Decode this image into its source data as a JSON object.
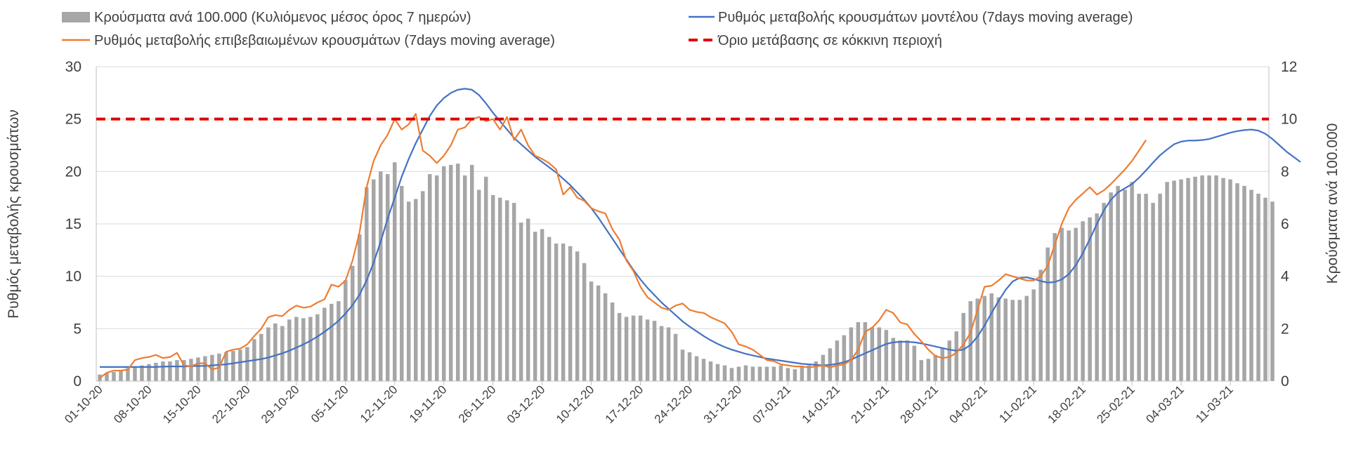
{
  "chart_data": {
    "type": "bar",
    "legend": {
      "placement": "top",
      "bars": "Κρούσματα ανά 100.000 (Κυλιόμενος μέσος όρος 7 ημερών)",
      "model": "Ρυθμός μεταβολής κρουσμάτων μοντέλου (7days moving average)",
      "confirmed": "Ρυθμός μεταβολής επιβεβαιωμένων κρουσμάτων (7days moving average)",
      "threshold": "Όριο μετάβασης σε κόκκινη περιοχή"
    },
    "ylabel_left": "Ρυθμός μεταβολής κρουσμάτων",
    "ylabel_right": "Κρούσματα ανά 100.000",
    "ylim_left": [
      0,
      30
    ],
    "ylim_right": [
      0,
      12
    ],
    "yticks_left": [
      "0",
      "5",
      "10",
      "15",
      "20",
      "25",
      "30"
    ],
    "yticks_right": [
      "0",
      "2",
      "4",
      "6",
      "8",
      "10",
      "12"
    ],
    "x_tick_labels": [
      "01-10-20",
      "08-10-20",
      "15-10-20",
      "22-10-20",
      "29-10-20",
      "05-11-20",
      "12-11-20",
      "19-11-20",
      "26-11-20",
      "03-12-20",
      "10-12-20",
      "17-12-20",
      "24-12-20",
      "31-12-20",
      "07-01-21",
      "14-01-21",
      "21-01-21",
      "28-01-21",
      "04-02-21",
      "11-02-21",
      "18-02-21",
      "25-02-21",
      "04-03-21",
      "11-03-21"
    ],
    "grid": "horizontal",
    "colors": {
      "bars": "#a6a6a6",
      "model": "#4472c4",
      "confirmed": "#ed7d31",
      "threshold": "#e00000",
      "grid": "#d9d9d9",
      "axis": "#bfbfbf",
      "text": "#404040"
    },
    "bar_axis": "right",
    "bar_values": [
      0.25,
      0.3,
      0.35,
      0.4,
      0.5,
      0.55,
      0.6,
      0.65,
      0.7,
      0.75,
      0.75,
      0.8,
      0.8,
      0.85,
      0.9,
      0.95,
      1.0,
      1.05,
      1.1,
      1.15,
      1.2,
      1.3,
      1.6,
      1.8,
      2.05,
      2.2,
      2.1,
      2.35,
      2.45,
      2.4,
      2.45,
      2.55,
      2.8,
      2.95,
      3.05,
      3.85,
      4.4,
      5.6,
      7.4,
      7.7,
      8.0,
      7.9,
      8.35,
      7.45,
      6.85,
      6.95,
      7.25,
      7.9,
      7.85,
      8.2,
      8.25,
      8.3,
      7.85,
      8.25,
      7.3,
      7.8,
      7.1,
      7.0,
      6.9,
      6.8,
      6.05,
      6.2,
      5.7,
      5.8,
      5.5,
      5.25,
      5.25,
      5.15,
      4.95,
      4.5,
      3.8,
      3.65,
      3.35,
      3.0,
      2.6,
      2.45,
      2.5,
      2.5,
      2.35,
      2.3,
      2.1,
      2.05,
      1.8,
      1.2,
      1.1,
      0.95,
      0.85,
      0.75,
      0.65,
      0.6,
      0.5,
      0.55,
      0.6,
      0.55,
      0.55,
      0.55,
      0.55,
      0.6,
      0.5,
      0.45,
      0.55,
      0.6,
      0.75,
      1.0,
      1.25,
      1.55,
      1.75,
      2.05,
      2.25,
      2.25,
      2.05,
      2.05,
      1.95,
      1.65,
      1.55,
      1.55,
      1.35,
      0.8,
      0.85,
      1.0,
      1.25,
      1.55,
      1.9,
      2.6,
      3.05,
      3.15,
      3.25,
      3.35,
      3.2,
      3.15,
      3.1,
      3.1,
      3.25,
      3.5,
      4.25,
      5.1,
      5.65,
      5.85,
      5.75,
      5.85,
      6.1,
      6.25,
      6.4,
      6.8,
      7.2,
      7.45,
      7.3,
      7.6,
      7.15,
      7.15,
      6.8,
      7.15,
      7.6,
      7.65,
      7.7,
      7.75,
      7.8,
      7.85,
      7.85,
      7.85,
      7.75,
      7.7,
      7.55,
      7.45,
      7.3,
      7.15,
      7.0,
      6.85
    ],
    "model_values": [
      1.35,
      1.35,
      1.35,
      1.35,
      1.35,
      1.35,
      1.35,
      1.35,
      1.35,
      1.38,
      1.4,
      1.4,
      1.4,
      1.42,
      1.45,
      1.45,
      1.5,
      1.55,
      1.6,
      1.7,
      1.8,
      1.9,
      2.0,
      2.1,
      2.25,
      2.45,
      2.65,
      2.9,
      3.2,
      3.5,
      3.85,
      4.25,
      4.7,
      5.2,
      5.75,
      6.45,
      7.25,
      8.25,
      9.6,
      11.3,
      13.3,
      15.5,
      17.5,
      19.5,
      21.2,
      22.7,
      24.0,
      25.3,
      26.3,
      27.0,
      27.5,
      27.8,
      27.9,
      27.8,
      27.3,
      26.5,
      25.6,
      24.8,
      24.0,
      23.2,
      22.6,
      22.0,
      21.4,
      20.9,
      20.4,
      19.9,
      19.3,
      18.7,
      18.0,
      17.3,
      16.5,
      15.6,
      14.6,
      13.6,
      12.6,
      11.6,
      10.6,
      9.7,
      8.9,
      8.2,
      7.5,
      6.9,
      6.3,
      5.7,
      5.2,
      4.75,
      4.3,
      3.9,
      3.55,
      3.25,
      3.0,
      2.8,
      2.6,
      2.45,
      2.3,
      2.15,
      2.05,
      1.95,
      1.85,
      1.75,
      1.65,
      1.6,
      1.55,
      1.5,
      1.55,
      1.65,
      1.8,
      2.05,
      2.35,
      2.65,
      2.95,
      3.25,
      3.55,
      3.7,
      3.75,
      3.75,
      3.7,
      3.6,
      3.45,
      3.3,
      3.15,
      3.0,
      2.9,
      3.0,
      3.45,
      4.25,
      5.3,
      6.5,
      7.65,
      8.7,
      9.5,
      9.85,
      9.9,
      9.75,
      9.55,
      9.4,
      9.45,
      9.7,
      10.2,
      11.05,
      12.2,
      13.55,
      15.0,
      16.3,
      17.3,
      18.0,
      18.4,
      18.8,
      19.4,
      20.1,
      20.85,
      21.55,
      22.1,
      22.6,
      22.85,
      22.95,
      22.95,
      23.0,
      23.1,
      23.3,
      23.5,
      23.7,
      23.85,
      23.95,
      24.0,
      23.9,
      23.6,
      23.1,
      22.5,
      21.9,
      21.4,
      20.9
    ],
    "confirmed_values": [
      0.3,
      0.8,
      1.0,
      1.0,
      1.1,
      2.0,
      2.2,
      2.3,
      2.5,
      2.2,
      2.3,
      2.7,
      1.5,
      1.4,
      1.7,
      1.7,
      1.1,
      1.3,
      2.8,
      3.0,
      3.1,
      3.5,
      4.3,
      5.0,
      6.1,
      6.3,
      6.2,
      6.8,
      7.2,
      7.0,
      7.1,
      7.5,
      7.8,
      9.2,
      9.0,
      9.6,
      11.5,
      14.2,
      18.5,
      21.0,
      22.5,
      23.5,
      25.0,
      24.0,
      24.5,
      25.5,
      22.0,
      21.5,
      20.8,
      21.5,
      22.5,
      24.0,
      24.2,
      25.0,
      25.2,
      24.8,
      25.0,
      24.0,
      25.2,
      23.0,
      24.0,
      22.5,
      21.5,
      21.2,
      20.8,
      20.2,
      17.8,
      18.5,
      17.5,
      17.2,
      16.5,
      16.2,
      16.0,
      14.5,
      13.5,
      11.5,
      10.5,
      9.0,
      8.0,
      7.5,
      7.0,
      6.8,
      7.2,
      7.4,
      6.8,
      6.6,
      6.5,
      6.1,
      5.8,
      5.5,
      4.7,
      3.5,
      3.3,
      3.0,
      2.5,
      2.0,
      1.9,
      1.6,
      1.5,
      1.4,
      1.4,
      1.3,
      1.4,
      1.5,
      1.3,
      1.5,
      1.6,
      2.0,
      3.0,
      4.7,
      5.1,
      5.8,
      6.8,
      6.5,
      5.6,
      5.4,
      4.5,
      3.8,
      3.0,
      2.4,
      2.2,
      2.3,
      2.7,
      3.5,
      4.6,
      6.8,
      9.0,
      9.1,
      9.6,
      10.2,
      10.0,
      9.8,
      9.6,
      9.6,
      10.0,
      11.0,
      13.0,
      15.0,
      16.5,
      17.3,
      17.9,
      18.5,
      17.8,
      18.2,
      18.8,
      19.5,
      20.2,
      21.0,
      22.0,
      23.0
    ],
    "threshold_value": 25
  }
}
